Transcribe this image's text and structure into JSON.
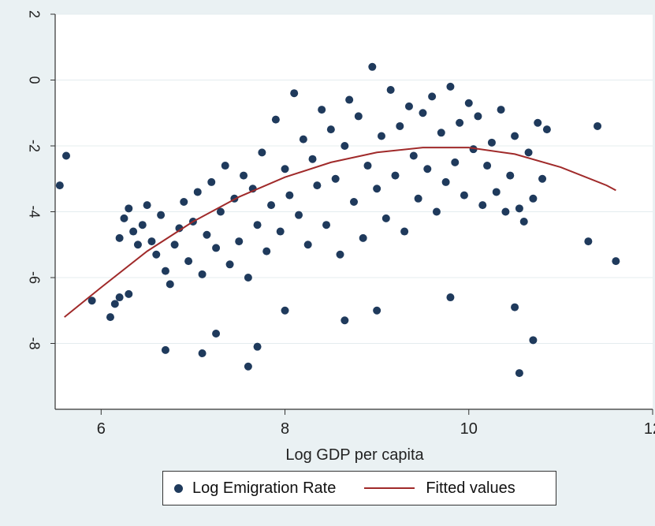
{
  "chart_data": {
    "type": "scatter",
    "title": "",
    "xlabel": "Log GDP per capita",
    "ylabel": "",
    "xlim": [
      5.5,
      12
    ],
    "ylim": [
      -10,
      2
    ],
    "x_ticks": [
      6,
      8,
      10,
      12
    ],
    "y_ticks": [
      2,
      0,
      -2,
      -4,
      -6,
      -8
    ],
    "x_tick_labels": [
      "6",
      "8",
      "10",
      "12"
    ],
    "y_tick_labels": [
      "2",
      "0",
      "-2",
      "-4",
      "-6",
      "-8"
    ],
    "grid": true,
    "legend_position": "bottom",
    "series": [
      {
        "name": "Log Emigration Rate",
        "kind": "scatter",
        "color": "#1f3a5c",
        "points": [
          [
            5.55,
            -3.2
          ],
          [
            5.62,
            -2.3
          ],
          [
            5.9,
            -6.7
          ],
          [
            6.1,
            -7.2
          ],
          [
            6.15,
            -6.8
          ],
          [
            6.2,
            -6.6
          ],
          [
            6.3,
            -6.5
          ],
          [
            6.2,
            -4.8
          ],
          [
            6.25,
            -4.2
          ],
          [
            6.3,
            -3.9
          ],
          [
            6.35,
            -4.6
          ],
          [
            6.4,
            -5.0
          ],
          [
            6.45,
            -4.4
          ],
          [
            6.5,
            -3.8
          ],
          [
            6.55,
            -4.9
          ],
          [
            6.6,
            -5.3
          ],
          [
            6.65,
            -4.1
          ],
          [
            6.7,
            -5.8
          ],
          [
            6.75,
            -6.2
          ],
          [
            6.8,
            -5.0
          ],
          [
            6.85,
            -4.5
          ],
          [
            6.9,
            -3.7
          ],
          [
            6.95,
            -5.5
          ],
          [
            7.0,
            -4.3
          ],
          [
            7.05,
            -3.4
          ],
          [
            7.1,
            -5.9
          ],
          [
            7.15,
            -4.7
          ],
          [
            7.2,
            -3.1
          ],
          [
            7.25,
            -5.1
          ],
          [
            7.3,
            -4.0
          ],
          [
            7.35,
            -2.6
          ],
          [
            7.4,
            -5.6
          ],
          [
            7.45,
            -3.6
          ],
          [
            7.5,
            -4.9
          ],
          [
            7.55,
            -2.9
          ],
          [
            7.6,
            -6.0
          ],
          [
            7.65,
            -3.3
          ],
          [
            7.7,
            -4.4
          ],
          [
            7.75,
            -2.2
          ],
          [
            7.8,
            -5.2
          ],
          [
            7.85,
            -3.8
          ],
          [
            7.9,
            -1.2
          ],
          [
            7.95,
            -4.6
          ],
          [
            8.0,
            -2.7
          ],
          [
            8.05,
            -3.5
          ],
          [
            8.1,
            -0.4
          ],
          [
            8.15,
            -4.1
          ],
          [
            8.2,
            -1.8
          ],
          [
            8.25,
            -5.0
          ],
          [
            8.3,
            -2.4
          ],
          [
            8.35,
            -3.2
          ],
          [
            8.4,
            -0.9
          ],
          [
            8.45,
            -4.4
          ],
          [
            8.5,
            -1.5
          ],
          [
            8.55,
            -3.0
          ],
          [
            8.6,
            -5.3
          ],
          [
            8.65,
            -2.0
          ],
          [
            8.7,
            -0.6
          ],
          [
            8.75,
            -3.7
          ],
          [
            8.8,
            -1.1
          ],
          [
            8.85,
            -4.8
          ],
          [
            8.9,
            -2.6
          ],
          [
            8.95,
            0.4
          ],
          [
            9.0,
            -3.3
          ],
          [
            9.05,
            -1.7
          ],
          [
            9.1,
            -4.2
          ],
          [
            9.15,
            -0.3
          ],
          [
            9.2,
            -2.9
          ],
          [
            9.25,
            -1.4
          ],
          [
            9.3,
            -4.6
          ],
          [
            9.35,
            -0.8
          ],
          [
            9.4,
            -2.3
          ],
          [
            9.45,
            -3.6
          ],
          [
            9.5,
            -1.0
          ],
          [
            9.55,
            -2.7
          ],
          [
            9.6,
            -0.5
          ],
          [
            9.65,
            -4.0
          ],
          [
            9.7,
            -1.6
          ],
          [
            9.75,
            -3.1
          ],
          [
            9.8,
            -0.2
          ],
          [
            9.85,
            -2.5
          ],
          [
            9.9,
            -1.3
          ],
          [
            9.95,
            -3.5
          ],
          [
            10.0,
            -0.7
          ],
          [
            10.05,
            -2.1
          ],
          [
            10.1,
            -1.1
          ],
          [
            10.15,
            -3.8
          ],
          [
            10.2,
            -2.6
          ],
          [
            10.25,
            -1.9
          ],
          [
            10.3,
            -3.4
          ],
          [
            10.35,
            -0.9
          ],
          [
            10.4,
            -4.0
          ],
          [
            10.45,
            -2.9
          ],
          [
            10.5,
            -1.7
          ],
          [
            10.55,
            -3.9
          ],
          [
            10.6,
            -4.3
          ],
          [
            10.65,
            -2.2
          ],
          [
            10.7,
            -3.6
          ],
          [
            10.75,
            -1.3
          ],
          [
            10.8,
            -3.0
          ],
          [
            10.85,
            -1.5
          ],
          [
            11.3,
            -4.9
          ],
          [
            11.4,
            -1.4
          ],
          [
            11.6,
            -5.5
          ],
          [
            6.7,
            -8.2
          ],
          [
            7.1,
            -8.3
          ],
          [
            7.6,
            -8.7
          ],
          [
            10.55,
            -8.9
          ],
          [
            10.7,
            -7.9
          ],
          [
            7.7,
            -8.1
          ],
          [
            7.25,
            -7.7
          ],
          [
            8.65,
            -7.3
          ],
          [
            10.5,
            -6.9
          ],
          [
            9.0,
            -7.0
          ],
          [
            8.0,
            -7.0
          ],
          [
            9.8,
            -6.6
          ]
        ]
      },
      {
        "name": "Fitted values",
        "kind": "line",
        "color": "#a02a2a",
        "x": [
          5.6,
          6.0,
          6.5,
          7.0,
          7.5,
          8.0,
          8.5,
          9.0,
          9.5,
          10.0,
          10.5,
          11.0,
          11.5,
          11.6
        ],
        "y": [
          -7.2,
          -6.3,
          -5.2,
          -4.3,
          -3.55,
          -2.95,
          -2.5,
          -2.2,
          -2.05,
          -2.05,
          -2.25,
          -2.65,
          -3.2,
          -3.35
        ]
      }
    ]
  },
  "legend": {
    "scatter_label": "Log Emigration Rate",
    "line_label": "Fitted values"
  }
}
